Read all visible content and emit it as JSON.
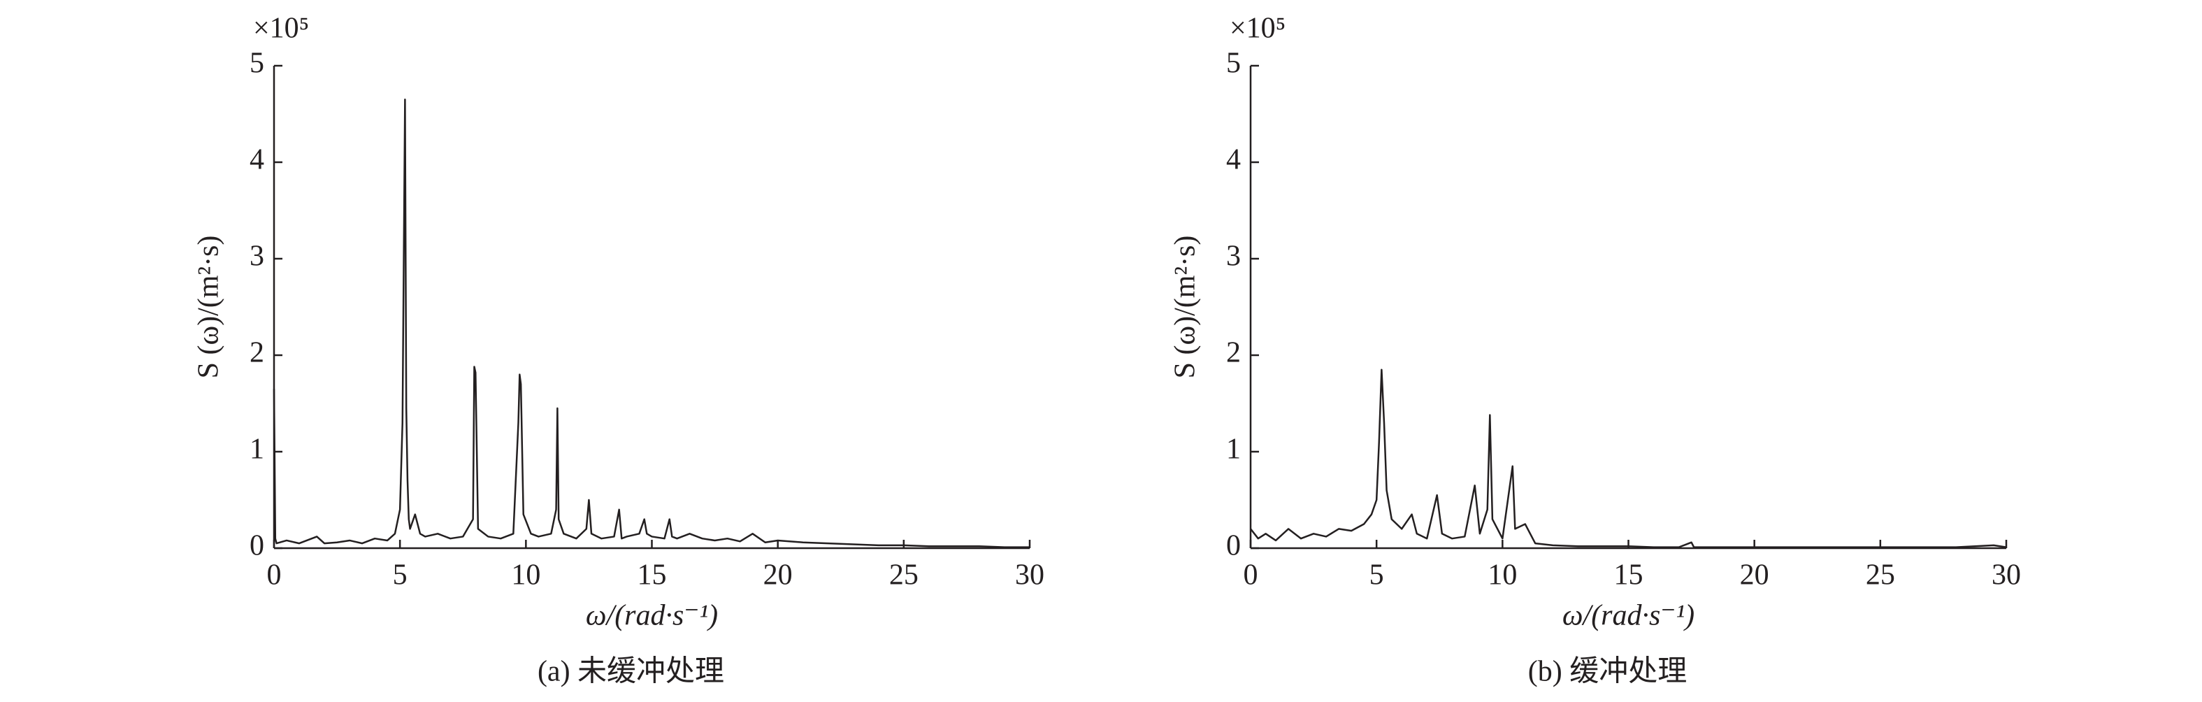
{
  "chart_data": [
    {
      "type": "line",
      "caption": "(a) 未缓冲处理",
      "xlabel": "ω/(rad·s⁻¹)",
      "ylabel": "S (ω)/(m²·s)",
      "y_multiplier": "×10⁵",
      "x": [
        0,
        0.05,
        0.1,
        0.5,
        1,
        1.5,
        1.7,
        2,
        2.5,
        3,
        3.5,
        4,
        4.5,
        4.8,
        5,
        5.1,
        5.2,
        5.25,
        5.3,
        5.35,
        5.4,
        5.6,
        5.8,
        6,
        6.5,
        7,
        7.5,
        7.9,
        7.95,
        8,
        8.1,
        8.5,
        9,
        9.5,
        9.7,
        9.75,
        9.8,
        9.9,
        10.2,
        10.5,
        11,
        11.2,
        11.25,
        11.3,
        11.5,
        12,
        12.4,
        12.5,
        12.6,
        13,
        13.5,
        13.7,
        13.8,
        14,
        14.5,
        14.7,
        14.8,
        15,
        15.5,
        15.7,
        15.8,
        16,
        16.5,
        17,
        17.5,
        18,
        18.5,
        19,
        19.5,
        20,
        21,
        22,
        23,
        24,
        25,
        26,
        27,
        28,
        29,
        30
      ],
      "series": [
        {
          "color": "#231f20",
          "values": [
            1.65,
            0.1,
            0.05,
            0.08,
            0.05,
            0.1,
            0.12,
            0.05,
            0.06,
            0.08,
            0.05,
            0.1,
            0.08,
            0.15,
            0.4,
            1.3,
            4.65,
            1.45,
            0.7,
            0.3,
            0.2,
            0.35,
            0.15,
            0.12,
            0.15,
            0.1,
            0.12,
            0.3,
            1.88,
            1.82,
            0.2,
            0.12,
            0.1,
            0.15,
            1.3,
            1.8,
            1.7,
            0.35,
            0.15,
            0.12,
            0.15,
            0.4,
            1.45,
            0.3,
            0.15,
            0.1,
            0.2,
            0.5,
            0.15,
            0.1,
            0.12,
            0.4,
            0.1,
            0.12,
            0.15,
            0.3,
            0.15,
            0.12,
            0.1,
            0.3,
            0.12,
            0.1,
            0.15,
            0.1,
            0.08,
            0.1,
            0.07,
            0.15,
            0.06,
            0.08,
            0.06,
            0.05,
            0.04,
            0.03,
            0.03,
            0.02,
            0.02,
            0.02,
            0.01,
            0.01
          ]
        }
      ],
      "xlim": [
        0,
        30
      ],
      "ylim": [
        0,
        5
      ],
      "xticks": [
        0,
        5,
        10,
        15,
        20,
        25,
        30
      ],
      "yticks": [
        0,
        1,
        2,
        3,
        4,
        5
      ]
    },
    {
      "type": "line",
      "caption": "(b) 缓冲处理",
      "xlabel": "ω/(rad·s⁻¹)",
      "ylabel": "S (ω)/(m²·s)",
      "y_multiplier": "×10⁵",
      "x": [
        0,
        0.3,
        0.6,
        1,
        1.5,
        2,
        2.5,
        3,
        3.5,
        4,
        4.5,
        4.8,
        5,
        5.1,
        5.2,
        5.3,
        5.4,
        5.6,
        6,
        6.4,
        6.6,
        7,
        7.4,
        7.6,
        8,
        8.5,
        8.9,
        9.1,
        9.4,
        9.5,
        9.6,
        10,
        10.4,
        10.5,
        10.9,
        11,
        11.3,
        12,
        13,
        14,
        15,
        16,
        17,
        17.5,
        17.6,
        18,
        20,
        22,
        24,
        26,
        28,
        29.5,
        30
      ],
      "series": [
        {
          "color": "#231f20",
          "values": [
            0.2,
            0.1,
            0.15,
            0.08,
            0.2,
            0.1,
            0.15,
            0.12,
            0.2,
            0.18,
            0.25,
            0.35,
            0.5,
            1.1,
            1.85,
            1.3,
            0.6,
            0.3,
            0.2,
            0.35,
            0.15,
            0.1,
            0.55,
            0.15,
            0.1,
            0.12,
            0.65,
            0.15,
            0.4,
            1.38,
            0.3,
            0.1,
            0.85,
            0.2,
            0.25,
            0.2,
            0.05,
            0.03,
            0.02,
            0.02,
            0.02,
            0.01,
            0.01,
            0.06,
            0.01,
            0.01,
            0.01,
            0.01,
            0.01,
            0.01,
            0.01,
            0.03,
            0.01
          ]
        }
      ],
      "xlim": [
        0,
        30
      ],
      "ylim": [
        0,
        5
      ],
      "xticks": [
        0,
        5,
        10,
        15,
        20,
        25,
        30
      ],
      "yticks": [
        0,
        1,
        2,
        3,
        4,
        5
      ]
    }
  ]
}
